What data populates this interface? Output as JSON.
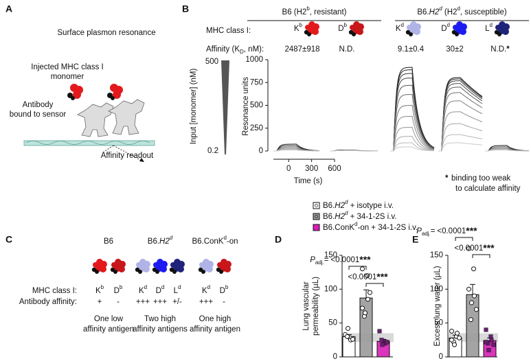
{
  "panel_a": {
    "label": "A",
    "title": "Surface plasmon resonance",
    "injected": [
      "Injected MHC class I",
      "monomer"
    ],
    "antibody": [
      "Antibody",
      "bound to sensor"
    ],
    "readout": "Affinity readout"
  },
  "panel_c": {
    "label": "C",
    "mhc_label": "MHC class I:",
    "affinity_label": "Antibody affinity:",
    "strains": [
      {
        "name": [
          {
            "text": "B6"
          }
        ],
        "alleles": [
          {
            "parts": [
              {
                "text": "K"
              },
              {
                "text": "b",
                "sup": true
              }
            ],
            "color": "#e3191c",
            "affinity": "+"
          },
          {
            "parts": [
              {
                "text": "D"
              },
              {
                "text": "b",
                "sup": true
              }
            ],
            "color": "#c8161a",
            "affinity": "-"
          }
        ],
        "summary": [
          "One low",
          "affinity antigen"
        ]
      },
      {
        "name": [
          {
            "text": "B6."
          },
          {
            "text": "H2",
            "italic": true
          },
          {
            "text": "d",
            "sup": true,
            "italic": true
          }
        ],
        "alleles": [
          {
            "parts": [
              {
                "text": "K"
              },
              {
                "text": "d",
                "sup": true
              }
            ],
            "color": "#b0b3e6",
            "affinity": "+++"
          },
          {
            "parts": [
              {
                "text": "D"
              },
              {
                "text": "d",
                "sup": true
              }
            ],
            "color": "#1c1cf0",
            "affinity": "+++"
          },
          {
            "parts": [
              {
                "text": "L"
              },
              {
                "text": "d",
                "sup": true
              }
            ],
            "color": "#1f237a",
            "affinity": "+/-"
          }
        ],
        "summary": [
          "Two high",
          "affinity antigens"
        ]
      },
      {
        "name": [
          {
            "text": "B6.ConK"
          },
          {
            "text": "d",
            "sup": true
          },
          {
            "text": "-on"
          }
        ],
        "alleles": [
          {
            "parts": [
              {
                "text": "K"
              },
              {
                "text": "d",
                "sup": true
              }
            ],
            "color": "#b0b3e6",
            "affinity": "+++"
          },
          {
            "parts": [
              {
                "text": "D"
              },
              {
                "text": "b",
                "sup": true
              }
            ],
            "color": "#c8161a",
            "affinity": "-"
          }
        ],
        "summary": [
          "One high",
          "affinity antigen"
        ]
      }
    ]
  },
  "chart_data": [
    {
      "type": "sensorgram",
      "label": "B",
      "mhc_label": "MHC class I:",
      "affinity_label": [
        {
          "text": "Affinity (K"
        },
        {
          "text": "D",
          "sub": true
        },
        {
          "text": ", nM):"
        }
      ],
      "input_label": "Input [monomer] (nM)",
      "input_range": [
        500,
        0.2
      ],
      "ylabel": "Resonance units",
      "ylim": [
        0,
        1000
      ],
      "yticks": [
        0,
        250,
        500,
        750,
        1000
      ],
      "xlabel": "Time (s)",
      "xlim": [
        -200,
        600
      ],
      "xticks": [
        0,
        300,
        600
      ],
      "groups": [
        {
          "name": [
            {
              "text": "B6 (H2"
            },
            {
              "text": "b",
              "sup": true
            },
            {
              "text": ", resistant)"
            }
          ],
          "alleles": [
            {
              "parts": [
                {
                  "text": "K"
                },
                {
                  "text": "b",
                  "sup": true
                }
              ],
              "color": "#e3191c",
              "affinity": [
                {
                  "text": "2487±918"
                }
              ],
              "decay": "fast",
              "peaks": [
                75,
                60,
                45,
                30,
                20,
                10
              ]
            },
            {
              "parts": [
                {
                  "text": "D"
                },
                {
                  "text": "b",
                  "sup": true
                }
              ],
              "color": "#c8161a",
              "affinity": [
                {
                  "text": "N.D."
                }
              ],
              "decay": "fast",
              "peaks": [
                10,
                5
              ]
            }
          ]
        },
        {
          "name": [
            {
              "text": "B6."
            },
            {
              "text": "H2",
              "italic": true
            },
            {
              "text": "d",
              "sup": true,
              "italic": true
            },
            {
              "text": " (H2"
            },
            {
              "text": "d",
              "sup": true
            },
            {
              "text": ", susceptible)"
            }
          ],
          "alleles": [
            {
              "parts": [
                {
                  "text": "K"
                },
                {
                  "text": "d",
                  "sup": true
                }
              ],
              "color": "#b0b3e6",
              "affinity": [
                {
                  "text": "9.1±0.4"
                }
              ],
              "decay": "fast",
              "peaks": [
                917,
                890,
                850,
                800,
                720,
                620,
                500,
                380,
                260,
                160,
                90,
                45
              ]
            },
            {
              "parts": [
                {
                  "text": "D"
                },
                {
                  "text": "d",
                  "sup": true
                }
              ],
              "color": "#1c1cf0",
              "affinity": [
                {
                  "text": "30±2"
                }
              ],
              "decay": "slow",
              "peaks": [
                805,
                790,
                770,
                740,
                700,
                640,
                550,
                430,
                300,
                180,
                90
              ]
            },
            {
              "parts": [
                {
                  "text": "L"
                },
                {
                  "text": "d",
                  "sup": true
                }
              ],
              "color": "#1f237a",
              "affinity": [
                {
                  "text": "N.D."
                },
                {
                  "text": "*",
                  "bold": true
                }
              ],
              "decay": "fast",
              "peaks": [
                60,
                45,
                30,
                20,
                10
              ]
            }
          ]
        }
      ],
      "footnote": {
        "star": "*",
        "lines": [
          "binding too weak",
          "to calculate affinity"
        ]
      }
    },
    {
      "type": "bar",
      "label": "D",
      "ylabel": [
        "Lung vascular",
        "permeability (µL)"
      ],
      "ylim": [
        0,
        150
      ],
      "yticks": [
        0,
        50,
        100,
        150
      ],
      "reference_band": [
        22,
        35
      ],
      "p_label": [
        {
          "text": "P",
          "italic": true
        },
        {
          "text": "adj.",
          "sub": true
        },
        {
          "text": "="
        }
      ],
      "comparisons": [
        {
          "pair": [
            0,
            1
          ],
          "label": "<0.0001",
          "stars": "***"
        },
        {
          "pair": [
            1,
            2
          ],
          "label": "<0.0001",
          "stars": "***"
        }
      ],
      "series": [
        {
          "name": [
            {
              "text": "B6."
            },
            {
              "text": "H2",
              "italic": true
            },
            {
              "text": "d",
              "sup": true,
              "italic": true
            },
            {
              "text": " + isotype i.v."
            }
          ],
          "color": "#ffffff",
          "marker": "circle",
          "values": [
            30
          ],
          "errors": [
            3
          ],
          "points": [
            33,
            28,
            25,
            30,
            42,
            26
          ]
        },
        {
          "name": [
            {
              "text": "B6."
            },
            {
              "text": "H2",
              "italic": true
            },
            {
              "text": "d",
              "sup": true,
              "italic": true
            },
            {
              "text": " + 34-1-2S i.v."
            }
          ],
          "color": "#9a9a9a",
          "marker": "circle",
          "values": [
            87
          ],
          "errors": [
            12
          ],
          "points": [
            130,
            120,
            85,
            60,
            65,
            95,
            72
          ]
        },
        {
          "name": [
            {
              "text": "B6.ConK"
            },
            {
              "text": "d",
              "sup": true
            },
            {
              "text": "-on + 34-1-2S i.v."
            }
          ],
          "color": "#d61fb5",
          "marker": "square",
          "values": [
            23
          ],
          "errors": [
            3
          ],
          "points": [
            38,
            23,
            20,
            25,
            18,
            22
          ]
        }
      ]
    },
    {
      "type": "bar",
      "label": "E",
      "ylabel": [
        "Excess lung water (µL)"
      ],
      "ylim": [
        0,
        150
      ],
      "yticks": [
        0,
        50,
        100,
        150
      ],
      "reference_band": [
        22,
        35
      ],
      "p_label": [
        {
          "text": "P",
          "italic": true
        },
        {
          "text": "adj.",
          "sub": true
        },
        {
          "text": "="
        }
      ],
      "comparisons": [
        {
          "pair": [
            0,
            1
          ],
          "label": "<0.0001",
          "stars": "***"
        },
        {
          "pair": [
            1,
            2
          ],
          "label": "<0.0001",
          "stars": "***"
        }
      ],
      "series": [
        {
          "color": "#ffffff",
          "marker": "circle",
          "values": [
            28
          ],
          "errors": [
            4
          ],
          "points": [
            38,
            30,
            35,
            22,
            18,
            28,
            25
          ]
        },
        {
          "color": "#9a9a9a",
          "marker": "circle",
          "values": [
            92
          ],
          "errors": [
            15
          ],
          "points": [
            160,
            130,
            90,
            55,
            80,
            70,
            100
          ]
        },
        {
          "color": "#d61fb5",
          "marker": "square",
          "values": [
            24
          ],
          "errors": [
            4
          ],
          "points": [
            40,
            30,
            25,
            20,
            10,
            18,
            22
          ]
        }
      ]
    }
  ]
}
